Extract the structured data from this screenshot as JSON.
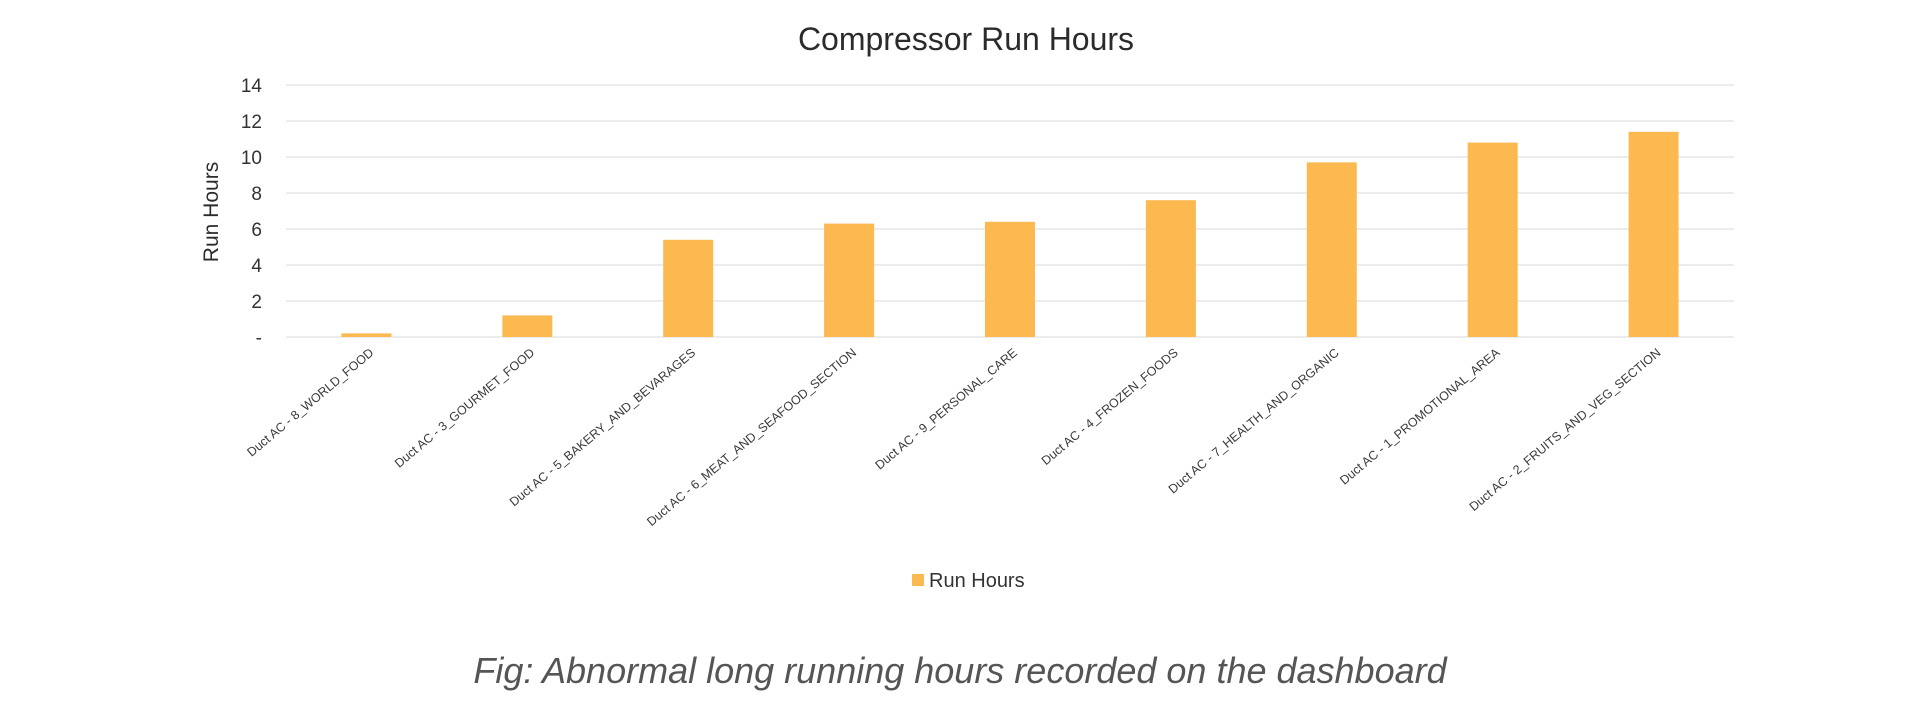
{
  "chart_data": {
    "type": "bar",
    "title": "Compressor Run Hours",
    "xlabel": "",
    "ylabel": "Run Hours",
    "ylim": [
      0,
      14
    ],
    "yticks": [
      0,
      2,
      4,
      6,
      8,
      10,
      12,
      14
    ],
    "ytick_labels": [
      "-",
      "2",
      "4",
      "6",
      "8",
      "10",
      "12",
      "14"
    ],
    "grid": true,
    "legend_position": "bottom",
    "categories": [
      "Duct AC - 8_WORLD_FOOD",
      "Duct AC - 3_GOURMET_FOOD",
      "Duct AC - 5_BAKERY_AND_BEVARAGES",
      "Duct AC - 6_MEAT_AND_SEAFOOD_SECTION",
      "Duct AC - 9_PERSONAL_CARE",
      "Duct AC - 4_FROZEN_FOODS",
      "Duct AC - 7_HEALTH_AND_ORGANIC",
      "Duct AC - 1_PROMOTIONAL_AREA",
      "Duct AC - 2_FRUITS_AND_VEG_SECTION"
    ],
    "series": [
      {
        "name": "Run Hours",
        "color": "#fbb950",
        "values": [
          0.2,
          1.2,
          5.4,
          6.3,
          6.4,
          7.6,
          9.7,
          10.8,
          11.4
        ]
      }
    ]
  },
  "caption": "Fig: Abnormal long running hours recorded on the dashboard"
}
